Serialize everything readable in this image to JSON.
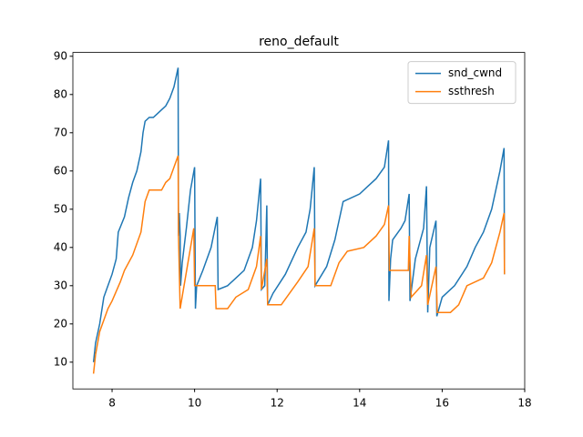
{
  "chart_data": {
    "type": "line",
    "title": "reno_default",
    "xlim": [
      7.05,
      18.0
    ],
    "xticks": [
      8,
      10,
      12,
      14,
      16,
      18
    ],
    "ylim": [
      3,
      91
    ],
    "yticks": [
      10,
      20,
      30,
      40,
      50,
      60,
      70,
      80,
      90
    ],
    "legend": "upper right",
    "series": [
      {
        "name": "snd_cwnd",
        "color": "#1f77b4",
        "x": [
          7.55,
          7.6,
          7.7,
          7.8,
          7.9,
          8.0,
          8.1,
          8.15,
          8.3,
          8.4,
          8.5,
          8.6,
          8.7,
          8.75,
          8.8,
          8.9,
          9.0,
          9.1,
          9.2,
          9.3,
          9.4,
          9.5,
          9.6,
          9.61,
          9.63,
          9.65,
          9.66,
          9.7,
          9.8,
          9.9,
          10.0,
          10.02,
          10.05,
          10.2,
          10.4,
          10.55,
          10.57,
          10.8,
          11.0,
          11.2,
          11.4,
          11.5,
          11.6,
          11.62,
          11.7,
          11.75,
          11.77,
          11.9,
          12.2,
          12.5,
          12.7,
          12.8,
          12.9,
          12.92,
          13.2,
          13.4,
          13.6,
          14.0,
          14.2,
          14.4,
          14.6,
          14.7,
          14.71,
          14.75,
          14.8,
          15.0,
          15.1,
          15.2,
          15.22,
          15.35,
          15.45,
          15.55,
          15.62,
          15.65,
          15.7,
          15.85,
          15.87,
          16.0,
          16.3,
          16.6,
          16.8,
          17.0,
          17.2,
          17.4,
          17.5,
          17.51
        ],
        "values": [
          10,
          15,
          20,
          27,
          30,
          33,
          37,
          44,
          48,
          53,
          57,
          60,
          65,
          70,
          73,
          74,
          74,
          75,
          76,
          77,
          79,
          82,
          87,
          43,
          49,
          43,
          30,
          36,
          45,
          55,
          61,
          24,
          30,
          34,
          40,
          48,
          29,
          30,
          32,
          34,
          40,
          47,
          58,
          29,
          30,
          51,
          25,
          28,
          33,
          40,
          44,
          50,
          61,
          30,
          35,
          42,
          52,
          54,
          56,
          58,
          61,
          68,
          26,
          37,
          42,
          45,
          47,
          54,
          26,
          37,
          41,
          45,
          56,
          23,
          40,
          47,
          22,
          27,
          30,
          35,
          40,
          44,
          50,
          60,
          66,
          33
        ]
      },
      {
        "name": "ssthresh",
        "color": "#ff7f0e",
        "x": [
          7.55,
          7.6,
          7.7,
          7.8,
          7.9,
          8.0,
          8.2,
          8.3,
          8.5,
          8.7,
          8.8,
          8.9,
          9.2,
          9.3,
          9.4,
          9.5,
          9.6,
          9.61,
          9.65,
          9.98,
          10.0,
          10.5,
          10.52,
          10.8,
          11.0,
          11.3,
          11.5,
          11.6,
          11.62,
          11.75,
          11.77,
          12.1,
          12.3,
          12.5,
          12.75,
          12.9,
          12.92,
          13.3,
          13.5,
          13.7,
          14.1,
          14.4,
          14.6,
          14.7,
          14.72,
          15.18,
          15.2,
          15.25,
          15.5,
          15.62,
          15.65,
          15.85,
          15.88,
          16.2,
          16.4,
          16.6,
          17.0,
          17.2,
          17.4,
          17.5,
          17.51
        ],
        "values": [
          7,
          12,
          18,
          21,
          24,
          26,
          31,
          34,
          38,
          44,
          52,
          55,
          55,
          57,
          58,
          61,
          64,
          43,
          24,
          45,
          30,
          30,
          24,
          24,
          27,
          29,
          35,
          43,
          29,
          37,
          25,
          25,
          28,
          31,
          35,
          45,
          30,
          30,
          36,
          39,
          40,
          43,
          46,
          51,
          34,
          34,
          43,
          27,
          30,
          38,
          25,
          35,
          23,
          23,
          25,
          30,
          32,
          36,
          44,
          49,
          33
        ]
      }
    ]
  }
}
